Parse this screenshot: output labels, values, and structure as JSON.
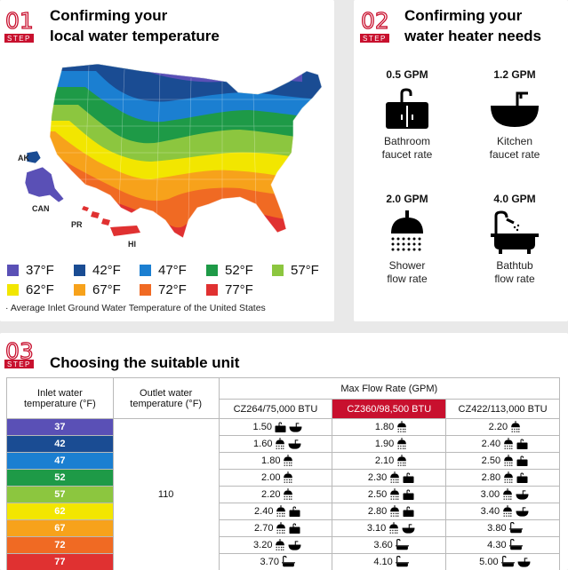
{
  "step1": {
    "num": "01",
    "tag": "STEP",
    "title_line1": "Confirming your",
    "title_line2": "local water temperature",
    "note": "· Average Inlet Ground Water Temperature of the United States",
    "labels": {
      "ak": "AK",
      "can": "CAN",
      "pr": "PR",
      "hi": "HI"
    },
    "legend": [
      {
        "label": "37°F",
        "color": "#5a50b6"
      },
      {
        "label": "42°F",
        "color": "#1a4c93"
      },
      {
        "label": "47°F",
        "color": "#1b7fd1"
      },
      {
        "label": "52°F",
        "color": "#1e9a47"
      },
      {
        "label": "57°F",
        "color": "#8cc63f"
      },
      {
        "label": "62°F",
        "color": "#f2e600"
      },
      {
        "label": "67°F",
        "color": "#f7a21b"
      },
      {
        "label": "72°F",
        "color": "#f06a23"
      },
      {
        "label": "77°F",
        "color": "#e03131"
      }
    ]
  },
  "step2": {
    "num": "02",
    "tag": "STEP",
    "title_line1": "Confirming your",
    "title_line2": "water heater needs",
    "items": [
      {
        "gpm": "0.5 GPM",
        "cap1": "Bathroom",
        "cap2": "faucet rate",
        "icon": "bathroom-sink-icon"
      },
      {
        "gpm": "1.2 GPM",
        "cap1": "Kitchen",
        "cap2": "faucet rate",
        "icon": "kitchen-sink-icon"
      },
      {
        "gpm": "2.0 GPM",
        "cap1": "Shower",
        "cap2": "flow rate",
        "icon": "shower-head-icon"
      },
      {
        "gpm": "4.0 GPM",
        "cap1": "Bathtub",
        "cap2": "flow rate",
        "icon": "bathtub-icon"
      }
    ]
  },
  "step3": {
    "num": "03",
    "tag": "STEP",
    "title": "Choosing the suitable unit",
    "headers": {
      "inlet_line1": "Inlet water",
      "inlet_line2": "temperature (°F)",
      "outlet_line1": "Outlet water",
      "outlet_line2": "temperature (°F)",
      "max_flow": "Max Flow Rate (GPM)",
      "models": [
        "CZ264/75,000 BTU",
        "CZ360/98,500 BTU",
        "CZ422/113,000 BTU"
      ]
    },
    "outlet_value": "110",
    "rows": [
      {
        "inlet": "37",
        "color": "#5a50b6",
        "cells": [
          {
            "v": "1.50",
            "icons": [
              "bathroom-sink-icon",
              "kitchen-sink-icon"
            ]
          },
          {
            "v": "1.80",
            "icons": [
              "shower-head-icon"
            ]
          },
          {
            "v": "2.20",
            "icons": [
              "shower-head-icon"
            ]
          }
        ]
      },
      {
        "inlet": "42",
        "color": "#1a4c93",
        "cells": [
          {
            "v": "1.60",
            "icons": [
              "shower-head-icon",
              "kitchen-sink-icon"
            ]
          },
          {
            "v": "1.90",
            "icons": [
              "shower-head-icon"
            ]
          },
          {
            "v": "2.40",
            "icons": [
              "shower-head-icon",
              "bathroom-sink-icon"
            ]
          }
        ]
      },
      {
        "inlet": "47",
        "color": "#1b7fd1",
        "cells": [
          {
            "v": "1.80",
            "icons": [
              "shower-head-icon"
            ]
          },
          {
            "v": "2.10",
            "icons": [
              "shower-head-icon"
            ]
          },
          {
            "v": "2.50",
            "icons": [
              "shower-head-icon",
              "bathroom-sink-icon"
            ]
          }
        ]
      },
      {
        "inlet": "52",
        "color": "#1e9a47",
        "cells": [
          {
            "v": "2.00",
            "icons": [
              "shower-head-icon"
            ]
          },
          {
            "v": "2.30",
            "icons": [
              "shower-head-icon",
              "bathroom-sink-icon"
            ]
          },
          {
            "v": "2.80",
            "icons": [
              "shower-head-icon",
              "bathroom-sink-icon"
            ]
          }
        ]
      },
      {
        "inlet": "57",
        "color": "#8cc63f",
        "cells": [
          {
            "v": "2.20",
            "icons": [
              "shower-head-icon"
            ]
          },
          {
            "v": "2.50",
            "icons": [
              "shower-head-icon",
              "bathroom-sink-icon"
            ]
          },
          {
            "v": "3.00",
            "icons": [
              "shower-head-icon",
              "kitchen-sink-icon"
            ]
          }
        ]
      },
      {
        "inlet": "62",
        "color": "#f2e600",
        "cells": [
          {
            "v": "2.40",
            "icons": [
              "shower-head-icon",
              "bathroom-sink-icon"
            ]
          },
          {
            "v": "2.80",
            "icons": [
              "shower-head-icon",
              "bathroom-sink-icon"
            ]
          },
          {
            "v": "3.40",
            "icons": [
              "shower-head-icon",
              "kitchen-sink-icon"
            ]
          }
        ]
      },
      {
        "inlet": "67",
        "color": "#f7a21b",
        "cells": [
          {
            "v": "2.70",
            "icons": [
              "shower-head-icon",
              "bathroom-sink-icon"
            ]
          },
          {
            "v": "3.10",
            "icons": [
              "shower-head-icon",
              "kitchen-sink-icon"
            ]
          },
          {
            "v": "3.80",
            "icons": [
              "bathtub-icon"
            ]
          }
        ]
      },
      {
        "inlet": "72",
        "color": "#f06a23",
        "cells": [
          {
            "v": "3.20",
            "icons": [
              "shower-head-icon",
              "kitchen-sink-icon"
            ]
          },
          {
            "v": "3.60",
            "icons": [
              "bathtub-icon"
            ]
          },
          {
            "v": "4.30",
            "icons": [
              "bathtub-icon"
            ]
          }
        ]
      },
      {
        "inlet": "77",
        "color": "#e03131",
        "cells": [
          {
            "v": "3.70",
            "icons": [
              "bathtub-icon"
            ]
          },
          {
            "v": "4.10",
            "icons": [
              "bathtub-icon"
            ]
          },
          {
            "v": "5.00",
            "icons": [
              "bathtub-icon",
              "kitchen-sink-icon"
            ]
          }
        ]
      }
    ]
  }
}
